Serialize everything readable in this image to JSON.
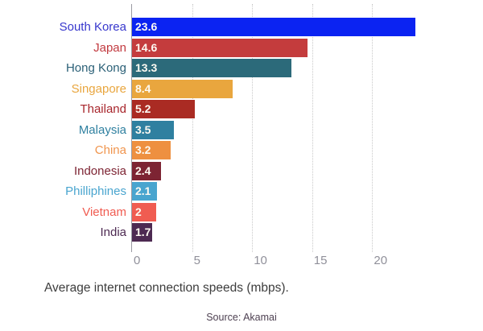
{
  "chart_data": {
    "type": "bar",
    "orientation": "horizontal",
    "title": "",
    "caption": "Average internet connection speeds (mbps).",
    "source": "Source: Akamai",
    "xlabel": "",
    "ylabel": "",
    "xlim": [
      0,
      28.4
    ],
    "x_ticks": [
      "0",
      "5",
      "10",
      "15",
      "20"
    ],
    "x_tick_values": [
      0,
      5,
      10,
      15,
      20
    ],
    "grid": "vertical dotted gridlines",
    "legend": "none",
    "categories": [
      "South Korea",
      "Japan",
      "Hong Kong",
      "Singapore",
      "Thailand",
      "Malaysia",
      "China",
      "Indonesia",
      "Philliphines",
      "Vietnam",
      "India"
    ],
    "values": [
      23.6,
      14.6,
      13.3,
      8.4,
      5.2,
      3.5,
      3.2,
      2.4,
      2.1,
      2,
      1.7
    ],
    "value_labels": [
      "23.6",
      "14.6",
      "13.3",
      "8.4",
      "5.2",
      "3.5",
      "3.2",
      "2.4",
      "2.1",
      "2",
      "1.7"
    ],
    "bar_colors": [
      "#0b23f2",
      "#c43c3d",
      "#2c6a7a",
      "#e9a63e",
      "#aa2b23",
      "#2f80a0",
      "#ee9040",
      "#7d2433",
      "#49a5cf",
      "#f05c51",
      "#4d2a52"
    ],
    "label_colors": [
      "#3737cd",
      "#c23a40",
      "#2b6077",
      "#e9a63e",
      "#a8262c",
      "#2f80a0",
      "#f0954e",
      "#7d2433",
      "#49a5cf",
      "#f05c51",
      "#4d2a52"
    ]
  },
  "style": {
    "background": "#ffffff",
    "axis_line_color": "#9a9aa2",
    "gridline_color": "#c9c9c9",
    "tick_text_color": "#90909a",
    "value_text_color": "#fdfaf2",
    "caption_color": "#3d3d3d",
    "source_color": "#4e4152"
  }
}
